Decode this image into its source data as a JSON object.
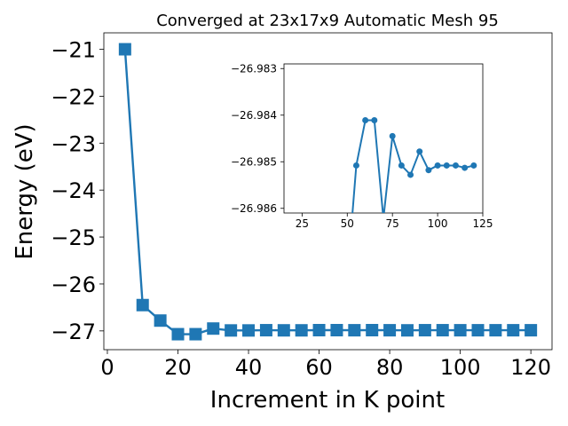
{
  "chart_data": [
    {
      "type": "line",
      "title": "Converged at 23x17x9 Automatic Mesh 95",
      "xlabel": "Increment in K point",
      "ylabel": "Energy (eV)",
      "xlim": [
        -1,
        126
      ],
      "ylim": [
        -27.4,
        -20.65
      ],
      "xticks": [
        "0",
        "20",
        "40",
        "60",
        "80",
        "100",
        "120"
      ],
      "yticks": [
        "−27",
        "−26",
        "−25",
        "−24",
        "−23",
        "−22",
        "−21"
      ],
      "grid": false,
      "marker": "square",
      "color": "#1f77b4",
      "series": [
        {
          "x": [
            5,
            10,
            15,
            20,
            25,
            30,
            35,
            40,
            45,
            50,
            55,
            60,
            65,
            70,
            75,
            80,
            85,
            90,
            95,
            100,
            105,
            110,
            115,
            120
          ],
          "y": [
            -21.0,
            -26.45,
            -26.78,
            -27.07,
            -27.07,
            -26.95,
            -26.99,
            -26.99,
            -26.985,
            -26.988,
            -26.988,
            -26.984,
            -26.984,
            -26.986,
            -26.984,
            -26.986,
            -26.988,
            -26.985,
            -26.985,
            -26.986,
            -26.986,
            -26.986,
            -26.986,
            -26.986
          ]
        }
      ]
    },
    {
      "type": "line",
      "title": "",
      "xlabel": "",
      "ylabel": "",
      "xlim": [
        15,
        125
      ],
      "ylim": [
        -26.9861,
        -26.9829
      ],
      "xticks": [
        "25",
        "50",
        "75",
        "100",
        "125"
      ],
      "yticks": [
        "−26.986",
        "−26.985",
        "−26.984",
        "−26.983"
      ],
      "grid": false,
      "marker": "circle",
      "color": "#1f77b4",
      "series": [
        {
          "x": [
            50,
            55,
            60,
            65,
            70,
            75,
            80,
            85,
            90,
            95,
            100,
            105,
            110,
            115,
            120
          ],
          "y": [
            -26.9875,
            -26.98508,
            -26.98411,
            -26.98411,
            -26.98622,
            -26.98445,
            -26.98508,
            -26.98528,
            -26.98478,
            -26.98518,
            -26.98508,
            -26.98508,
            -26.98508,
            -26.98513,
            -26.98508
          ]
        }
      ]
    }
  ]
}
